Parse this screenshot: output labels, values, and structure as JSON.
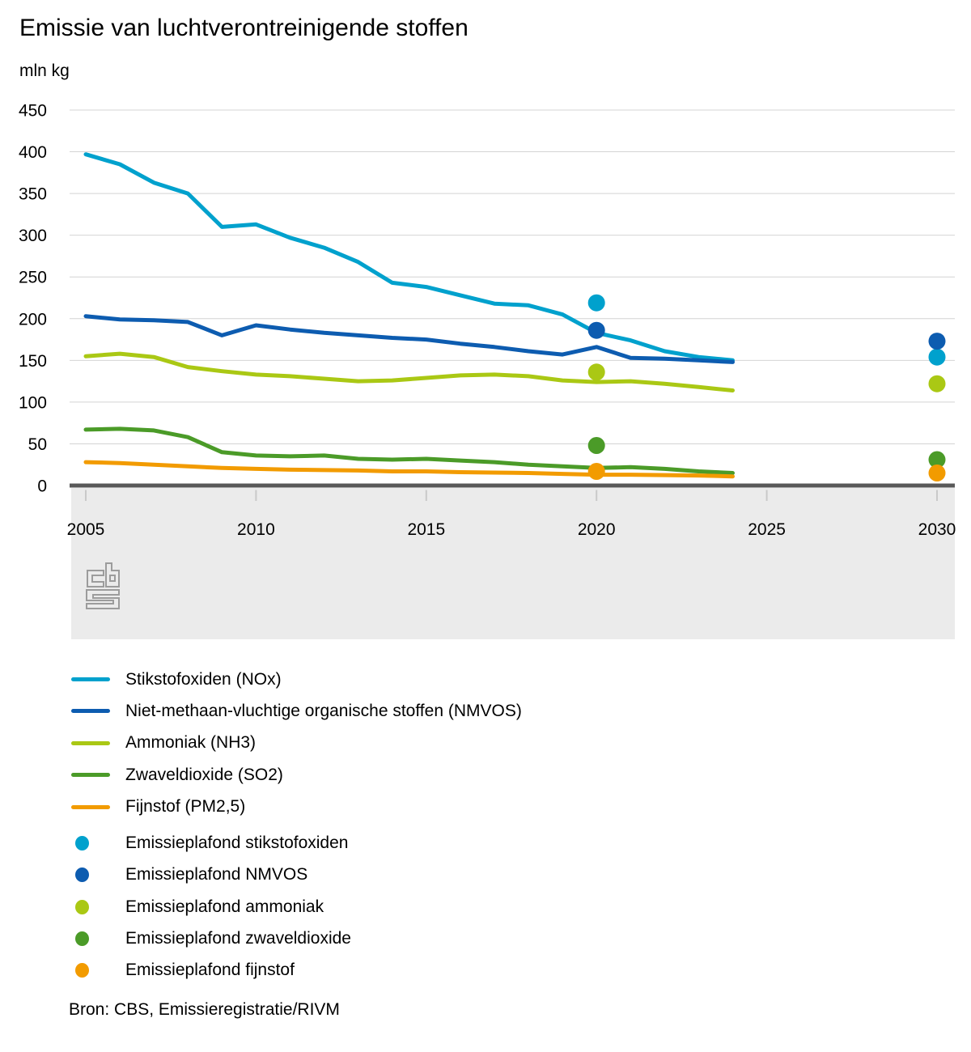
{
  "title": "Emissie van luchtverontreinigende stoffen",
  "unit_label": "mln kg",
  "source": "Bron: CBS, Emissieregistratie/RIVM",
  "colors": {
    "nox": "#00a1cd",
    "nmvos": "#0d5cb0",
    "nh3": "#aac814",
    "so2": "#4b9b28",
    "pm25": "#f29b00",
    "grid": "#d4d4d4",
    "zero_axis": "#595959",
    "footer_band": "#ebebeb",
    "tick": "#c9c9c9",
    "logo": "#9c9c9c",
    "text": "#000000"
  },
  "chart_data": {
    "type": "line",
    "title": "Emissie van luchtverontreinigende stoffen",
    "xlabel": "",
    "ylabel": "mln kg",
    "xlim": [
      2005,
      2030
    ],
    "ylim": [
      0,
      450
    ],
    "grid": "horizontal",
    "legend_position": "bottom",
    "y_ticks": [
      0,
      50,
      100,
      150,
      200,
      250,
      300,
      350,
      400,
      450
    ],
    "x_ticks": [
      2005,
      2010,
      2015,
      2020,
      2025,
      2030
    ],
    "x": [
      2005,
      2006,
      2007,
      2008,
      2009,
      2010,
      2011,
      2012,
      2013,
      2014,
      2015,
      2016,
      2017,
      2018,
      2019,
      2020,
      2021,
      2022,
      2023,
      2024
    ],
    "series": [
      {
        "key": "nox",
        "name": "Stikstofoxiden (NOx)",
        "color_key": "nox",
        "values": [
          397,
          385,
          363,
          350,
          310,
          313,
          297,
          285,
          268,
          243,
          238,
          228,
          218,
          216,
          205,
          183,
          174,
          161,
          154,
          150
        ]
      },
      {
        "key": "nmvos",
        "name": "Niet-methaan-vluchtige organische stoffen (NMVOS)",
        "color_key": "nmvos",
        "values": [
          203,
          199,
          198,
          196,
          180,
          192,
          187,
          183,
          180,
          177,
          175,
          170,
          166,
          161,
          157,
          166,
          153,
          152,
          150,
          148
        ]
      },
      {
        "key": "nh3",
        "name": "Ammoniak (NH3)",
        "color_key": "nh3",
        "values": [
          155,
          158,
          154,
          142,
          137,
          133,
          131,
          128,
          125,
          126,
          129,
          132,
          133,
          131,
          126,
          124,
          125,
          122,
          118,
          114
        ]
      },
      {
        "key": "so2",
        "name": "Zwaveldioxide (SO2)",
        "color_key": "so2",
        "values": [
          67,
          68,
          66,
          58,
          40,
          36,
          35,
          36,
          32,
          31,
          32,
          30,
          28,
          25,
          23,
          21,
          22,
          20,
          17,
          15
        ]
      },
      {
        "key": "pm25",
        "name": "Fijnstof (PM2,5)",
        "color_key": "pm25",
        "values": [
          28,
          27,
          25,
          23,
          21,
          20,
          19,
          18.5,
          18,
          17,
          17,
          16,
          15.5,
          15,
          14,
          13,
          13,
          12.5,
          12,
          11
        ]
      }
    ],
    "ceilings": [
      {
        "key": "plafond-nox",
        "name": "Emissieplafond stikstofoxiden",
        "color_key": "nox",
        "points": [
          {
            "x": 2020,
            "y": 219
          },
          {
            "x": 2030,
            "y": 154
          }
        ]
      },
      {
        "key": "plafond-nmvos",
        "name": "Emissieplafond NMVOS",
        "color_key": "nmvos",
        "points": [
          {
            "x": 2020,
            "y": 186
          },
          {
            "x": 2030,
            "y": 173
          }
        ]
      },
      {
        "key": "plafond-nh3",
        "name": "Emissieplafond ammoniak",
        "color_key": "nh3",
        "points": [
          {
            "x": 2020,
            "y": 136
          },
          {
            "x": 2030,
            "y": 122
          }
        ]
      },
      {
        "key": "plafond-so2",
        "name": "Emissieplafond zwaveldioxide",
        "color_key": "so2",
        "points": [
          {
            "x": 2020,
            "y": 48
          },
          {
            "x": 2030,
            "y": 31
          }
        ]
      },
      {
        "key": "plafond-pm25",
        "name": "Emissieplafond fijnstof",
        "color_key": "pm25",
        "points": [
          {
            "x": 2020,
            "y": 17
          },
          {
            "x": 2030,
            "y": 15
          }
        ]
      }
    ]
  },
  "legend": {
    "items": [
      {
        "key": "nox",
        "type": "line",
        "color_key": "nox",
        "label": "Stikstofoxiden (NOx)"
      },
      {
        "key": "nmvos",
        "type": "line",
        "color_key": "nmvos",
        "label": "Niet-methaan-vluchtige organische stoffen (NMVOS)"
      },
      {
        "key": "nh3",
        "type": "line",
        "color_key": "nh3",
        "label": "Ammoniak (NH3)"
      },
      {
        "key": "so2",
        "type": "line",
        "color_key": "so2",
        "label": "Zwaveldioxide (SO2)"
      },
      {
        "key": "pm25",
        "type": "line",
        "color_key": "pm25",
        "label": "Fijnstof (PM2,5)"
      },
      {
        "key": "plafond-nox",
        "type": "dot",
        "color_key": "nox",
        "label": "Emissieplafond stikstofoxiden"
      },
      {
        "key": "plafond-nmvos",
        "type": "dot",
        "color_key": "nmvos",
        "label": "Emissieplafond NMVOS"
      },
      {
        "key": "plafond-nh3",
        "type": "dot",
        "color_key": "nh3",
        "label": "Emissieplafond ammoniak"
      },
      {
        "key": "plafond-so2",
        "type": "dot",
        "color_key": "so2",
        "label": "Emissieplafond zwaveldioxide"
      },
      {
        "key": "plafond-pm25",
        "type": "dot",
        "color_key": "pm25",
        "label": "Emissieplafond fijnstof"
      }
    ]
  }
}
